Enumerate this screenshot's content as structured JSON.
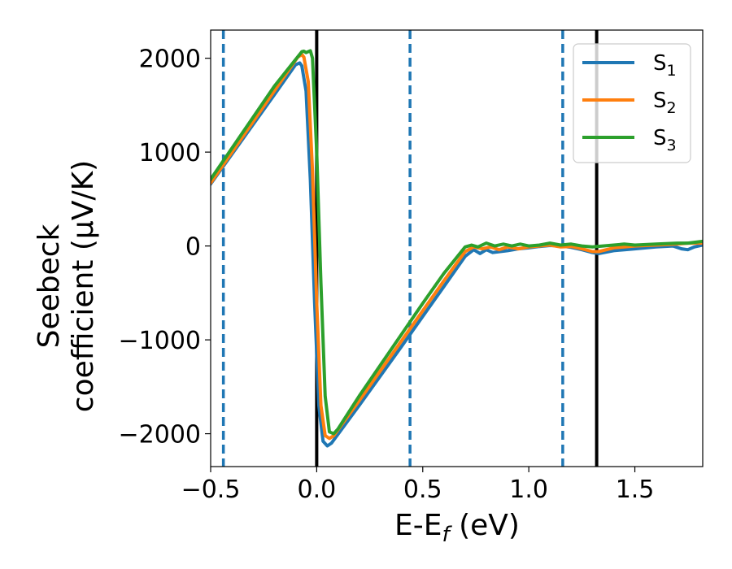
{
  "chart_data": {
    "type": "line",
    "title": "",
    "xlabel": "E-E",
    "xlabel_sub": "f",
    "xlabel_unit": " (eV)",
    "ylabel_line1": "Seebeck",
    "ylabel_line2": "coefficient  (μV/K)",
    "xlim": [
      -0.5,
      1.82
    ],
    "ylim": [
      -2350,
      2300
    ],
    "xticks": [
      -0.5,
      0.0,
      0.5,
      1.0,
      1.5
    ],
    "xtick_labels": [
      "−0.5",
      "0.0",
      "0.5",
      "1.0",
      "1.5"
    ],
    "yticks": [
      -2000,
      -1000,
      0,
      1000,
      2000
    ],
    "ytick_labels": [
      "−2000",
      "−1000",
      "0",
      "1000",
      "2000"
    ],
    "grid": false,
    "legend_position": "top-right",
    "series": [
      {
        "name": "S1",
        "label_main": "S",
        "label_sub": "1",
        "color": "#1f77b4",
        "points": [
          [
            -0.5,
            660
          ],
          [
            -0.2,
            1610
          ],
          [
            -0.1,
            1930
          ],
          [
            -0.08,
            1950
          ],
          [
            -0.07,
            1920
          ],
          [
            -0.05,
            1650
          ],
          [
            -0.03,
            700
          ],
          [
            -0.01,
            -600
          ],
          [
            0.01,
            -1700
          ],
          [
            0.03,
            -2080
          ],
          [
            0.05,
            -2130
          ],
          [
            0.07,
            -2100
          ],
          [
            0.2,
            -1700
          ],
          [
            0.4,
            -1070
          ],
          [
            0.5,
            -750
          ],
          [
            0.6,
            -430
          ],
          [
            0.7,
            -110
          ],
          [
            0.74,
            -40
          ],
          [
            0.77,
            -80
          ],
          [
            0.8,
            -40
          ],
          [
            0.83,
            -70
          ],
          [
            0.9,
            -50
          ],
          [
            0.95,
            -30
          ],
          [
            1.0,
            -20
          ],
          [
            1.05,
            -5
          ],
          [
            1.1,
            5
          ],
          [
            1.15,
            0
          ],
          [
            1.2,
            -15
          ],
          [
            1.25,
            -40
          ],
          [
            1.3,
            -70
          ],
          [
            1.33,
            -80
          ],
          [
            1.4,
            -50
          ],
          [
            1.5,
            -30
          ],
          [
            1.6,
            -10
          ],
          [
            1.68,
            0
          ],
          [
            1.72,
            -30
          ],
          [
            1.75,
            -40
          ],
          [
            1.78,
            -10
          ],
          [
            1.82,
            10
          ]
        ]
      },
      {
        "name": "S2",
        "label_main": "S",
        "label_sub": "2",
        "color": "#ff7f0e",
        "points": [
          [
            -0.5,
            670
          ],
          [
            -0.2,
            1650
          ],
          [
            -0.09,
            2010
          ],
          [
            -0.07,
            2040
          ],
          [
            -0.06,
            2010
          ],
          [
            -0.04,
            1750
          ],
          [
            -0.02,
            800
          ],
          [
            0.0,
            -600
          ],
          [
            0.02,
            -1700
          ],
          [
            0.04,
            -2020
          ],
          [
            0.06,
            -2050
          ],
          [
            0.08,
            -2020
          ],
          [
            0.2,
            -1650
          ],
          [
            0.4,
            -1010
          ],
          [
            0.5,
            -690
          ],
          [
            0.6,
            -370
          ],
          [
            0.7,
            -60
          ],
          [
            0.74,
            -10
          ],
          [
            0.78,
            -30
          ],
          [
            0.82,
            -10
          ],
          [
            0.86,
            -40
          ],
          [
            0.9,
            -10
          ],
          [
            0.95,
            -30
          ],
          [
            1.0,
            -10
          ],
          [
            1.05,
            0
          ],
          [
            1.1,
            10
          ],
          [
            1.15,
            -10
          ],
          [
            1.2,
            -5
          ],
          [
            1.25,
            -30
          ],
          [
            1.3,
            -60
          ],
          [
            1.33,
            -60
          ],
          [
            1.4,
            -20
          ],
          [
            1.5,
            0
          ],
          [
            1.6,
            10
          ],
          [
            1.7,
            20
          ],
          [
            1.75,
            30
          ],
          [
            1.82,
            30
          ]
        ]
      },
      {
        "name": "S3",
        "label_main": "S",
        "label_sub": "3",
        "color": "#2ca02c",
        "points": [
          [
            -0.5,
            710
          ],
          [
            -0.2,
            1700
          ],
          [
            -0.07,
            2070
          ],
          [
            -0.06,
            2075
          ],
          [
            -0.05,
            2060
          ],
          [
            -0.03,
            2080
          ],
          [
            -0.02,
            2000
          ],
          [
            0.0,
            1000
          ],
          [
            0.02,
            -400
          ],
          [
            0.04,
            -1600
          ],
          [
            0.06,
            -1980
          ],
          [
            0.08,
            -2000
          ],
          [
            0.1,
            -1950
          ],
          [
            0.2,
            -1600
          ],
          [
            0.4,
            -940
          ],
          [
            0.5,
            -610
          ],
          [
            0.6,
            -290
          ],
          [
            0.7,
            -10
          ],
          [
            0.73,
            10
          ],
          [
            0.76,
            -10
          ],
          [
            0.8,
            30
          ],
          [
            0.84,
            0
          ],
          [
            0.88,
            20
          ],
          [
            0.92,
            0
          ],
          [
            0.96,
            20
          ],
          [
            1.0,
            0
          ],
          [
            1.05,
            10
          ],
          [
            1.1,
            30
          ],
          [
            1.15,
            10
          ],
          [
            1.2,
            20
          ],
          [
            1.25,
            0
          ],
          [
            1.3,
            -10
          ],
          [
            1.35,
            0
          ],
          [
            1.4,
            10
          ],
          [
            1.45,
            20
          ],
          [
            1.5,
            10
          ],
          [
            1.6,
            20
          ],
          [
            1.7,
            30
          ],
          [
            1.75,
            30
          ],
          [
            1.82,
            50
          ]
        ]
      }
    ],
    "vlines": [
      {
        "x": -0.44,
        "style": "dashed",
        "color": "#1f77b4"
      },
      {
        "x": 0.0,
        "style": "solid",
        "color": "#000000"
      },
      {
        "x": 0.44,
        "style": "dashed",
        "color": "#1f77b4"
      },
      {
        "x": 1.16,
        "style": "dashed",
        "color": "#1f77b4"
      },
      {
        "x": 1.32,
        "style": "solid",
        "color": "#000000"
      }
    ]
  }
}
